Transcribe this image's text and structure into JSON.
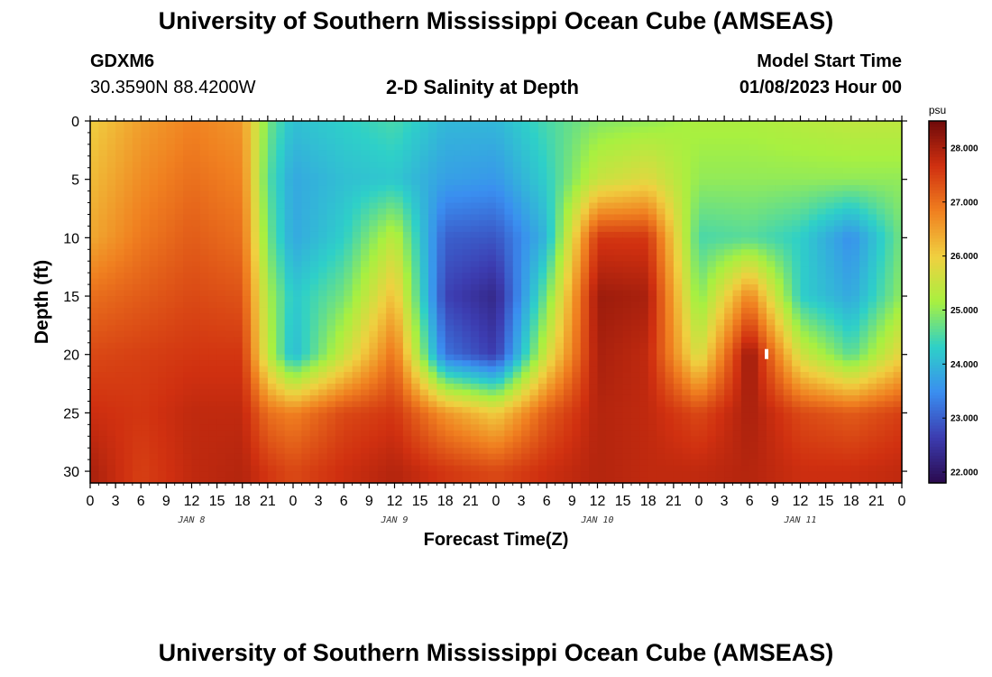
{
  "page": {
    "title": "University of Southern Mississippi Ocean Cube (AMSEAS)",
    "station_id": "GDXM6",
    "coordinates": "30.3590N  88.4200W",
    "chart_title": "2-D Salinity at Depth",
    "model_start_label": "Model Start Time",
    "model_start_value": "01/08/2023 Hour 00",
    "footer_title": "University of Southern Mississippi Ocean Cube (AMSEAS)"
  },
  "chart_data": {
    "type": "heatmap",
    "title": "2-D Salinity at Depth",
    "xlabel": "Forecast Time(Z)",
    "ylabel": "Depth (ft)",
    "y_ticks": [
      0,
      5,
      10,
      15,
      20,
      25,
      30
    ],
    "ylim": [
      0,
      31
    ],
    "y_inverted": true,
    "x_hours_range": [
      0,
      96
    ],
    "x_tick_labels": [
      "0",
      "3",
      "6",
      "9",
      "12",
      "15",
      "18",
      "21",
      "0",
      "3",
      "6",
      "9",
      "12",
      "15",
      "18",
      "21",
      "0",
      "3",
      "6",
      "9",
      "12",
      "15",
      "18",
      "21",
      "0",
      "3",
      "6",
      "9",
      "12",
      "15",
      "18",
      "21",
      "0"
    ],
    "day_labels": [
      {
        "label": "JAN 8",
        "hour": 12
      },
      {
        "label": "JAN 9",
        "hour": 36
      },
      {
        "label": "JAN 10",
        "hour": 60
      },
      {
        "label": "JAN 11",
        "hour": 84
      }
    ],
    "colorbar": {
      "unit": "psu",
      "min": 21.8,
      "max": 28.5,
      "ticks": [
        "22.000",
        "23.000",
        "24.000",
        "25.000",
        "26.000",
        "27.000",
        "28.000"
      ],
      "colors": [
        "#2a0a4e",
        "#3c3cb0",
        "#3a8ef0",
        "#2ed0c8",
        "#a8f040",
        "#f0d040",
        "#f08020",
        "#d03010",
        "#6e0a0a"
      ]
    },
    "marker": {
      "hour": 80,
      "depth_ft": 20
    },
    "hours": [
      0,
      6,
      12,
      18,
      21,
      24,
      30,
      36,
      42,
      48,
      54,
      60,
      66,
      72,
      78,
      84,
      90,
      96
    ],
    "depths": [
      0,
      5,
      10,
      15,
      20,
      25,
      30,
      31
    ],
    "values": [
      [
        26.0,
        26.5,
        26.8,
        26.6,
        24.8,
        24.1,
        24.3,
        24.5,
        24.0,
        24.0,
        24.5,
        24.9,
        25.0,
        25.2,
        25.2,
        25.3,
        25.4,
        25.4
      ],
      [
        26.2,
        26.7,
        27.0,
        26.8,
        24.6,
        23.8,
        24.1,
        24.2,
        23.7,
        23.6,
        24.3,
        25.5,
        25.8,
        25.0,
        25.0,
        25.0,
        25.0,
        25.0
      ],
      [
        26.4,
        26.9,
        27.2,
        27.0,
        24.8,
        23.8,
        24.3,
        25.4,
        23.0,
        22.9,
        24.0,
        27.6,
        27.6,
        24.5,
        24.6,
        24.3,
        23.5,
        24.8
      ],
      [
        27.0,
        27.2,
        27.4,
        27.3,
        25.2,
        24.2,
        24.8,
        26.2,
        22.7,
        22.3,
        24.8,
        28.1,
        28.0,
        24.9,
        26.8,
        24.3,
        23.8,
        25.0
      ],
      [
        27.4,
        27.5,
        27.6,
        27.6,
        25.4,
        24.0,
        25.5,
        27.0,
        23.2,
        22.6,
        25.6,
        28.0,
        27.8,
        25.6,
        28.2,
        25.6,
        24.6,
        25.9
      ],
      [
        27.7,
        27.6,
        27.8,
        27.8,
        27.0,
        26.8,
        27.4,
        27.6,
        26.6,
        26.0,
        27.2,
        27.9,
        27.8,
        27.4,
        28.0,
        27.4,
        27.2,
        27.5
      ],
      [
        28.0,
        27.5,
        27.8,
        27.9,
        27.6,
        27.4,
        27.7,
        27.9,
        27.6,
        27.4,
        27.7,
        27.9,
        27.8,
        27.8,
        27.9,
        27.7,
        27.7,
        27.8
      ],
      [
        28.0,
        27.5,
        27.8,
        27.9,
        27.6,
        27.4,
        27.7,
        27.9,
        27.6,
        27.4,
        27.7,
        27.9,
        27.8,
        27.8,
        27.9,
        27.7,
        27.7,
        27.8
      ]
    ]
  }
}
